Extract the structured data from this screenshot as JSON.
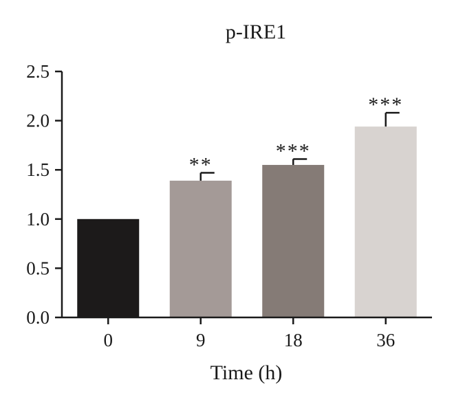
{
  "chart_data": {
    "type": "bar",
    "title": "p-IRE1",
    "xlabel": "Time (h)",
    "ylabel": "",
    "ylim": [
      0,
      2.5
    ],
    "yticks": [
      "0.0",
      "0.5",
      "1.0",
      "1.5",
      "2.0",
      "2.5"
    ],
    "categories": [
      "0",
      "9",
      "18",
      "36"
    ],
    "values": [
      1.0,
      1.39,
      1.55,
      1.94
    ],
    "errors": [
      0,
      0.08,
      0.06,
      0.14
    ],
    "significance": [
      "",
      "**",
      "***",
      "***"
    ],
    "colors": [
      "#1c1a1a",
      "#a49a97",
      "#857b76",
      "#d8d3d0"
    ],
    "grid": false
  }
}
